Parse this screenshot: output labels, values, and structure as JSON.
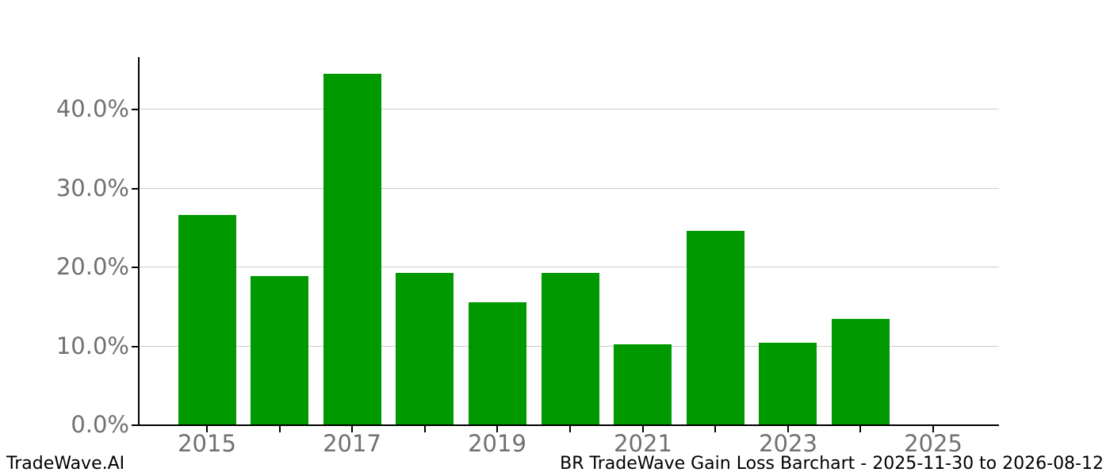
{
  "chart_data": {
    "type": "bar",
    "title": "",
    "categories": [
      2015,
      2016,
      2017,
      2018,
      2019,
      2020,
      2021,
      2022,
      2023,
      2024
    ],
    "values": [
      26.5,
      18.8,
      44.4,
      19.2,
      15.5,
      19.2,
      10.2,
      24.5,
      10.4,
      13.4
    ],
    "value_unit": "%",
    "bar_color": "#009900",
    "x_ticks": [
      2015,
      2016,
      2017,
      2018,
      2019,
      2020,
      2021,
      2022,
      2023,
      2024,
      2025
    ],
    "x_tick_labels": [
      "2015",
      "",
      "2017",
      "",
      "2019",
      "",
      "2021",
      "",
      "2023",
      "",
      "2025"
    ],
    "y_ticks": [
      0,
      10,
      20,
      30,
      40
    ],
    "y_tick_labels": [
      "0.0%",
      "10.0%",
      "20.0%",
      "30.0%",
      "40.0%"
    ],
    "ylim": [
      0,
      46.6
    ],
    "grid": true,
    "legend_position": "none",
    "xlabel": "",
    "ylabel": ""
  },
  "footer": {
    "brand": "TradeWave.AI",
    "caption": "BR TradeWave Gain Loss Barchart - 2025-11-30 to 2026-08-12"
  }
}
